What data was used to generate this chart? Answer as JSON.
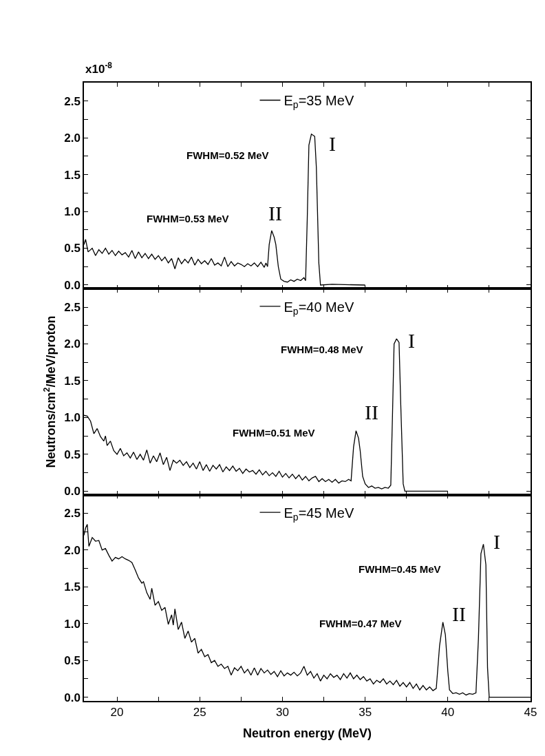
{
  "chart_data": [
    {
      "type": "line",
      "annotations": [
        "x10$^{-8}$",
        "FWHM=0.52 MeV",
        "I",
        "FWHM=0.53 MeV",
        "II"
      ],
      "series": [
        {
          "name": "E$_{p}$=35 MeV",
          "color": "#000000",
          "x": [
            18.0,
            18.1,
            18.25,
            18.5,
            18.7,
            18.9,
            19.1,
            19.3,
            19.5,
            19.7,
            19.9,
            20.1,
            20.3,
            20.5,
            20.7,
            20.9,
            21.1,
            21.3,
            21.5,
            21.7,
            21.9,
            22.1,
            22.3,
            22.5,
            22.7,
            22.9,
            23.1,
            23.3,
            23.5,
            23.7,
            23.9,
            24.1,
            24.3,
            24.5,
            24.7,
            24.9,
            25.1,
            25.3,
            25.5,
            25.7,
            25.9,
            26.1,
            26.3,
            26.5,
            26.7,
            26.9,
            27.1,
            27.3,
            27.5,
            27.7,
            27.9,
            28.1,
            28.3,
            28.5,
            28.7,
            28.9,
            29.0,
            29.1,
            29.2,
            29.35,
            29.5,
            29.6,
            29.75,
            29.9,
            30.1,
            30.3,
            30.5,
            30.7,
            30.9,
            31.1,
            31.3,
            31.4,
            31.5,
            31.6,
            31.75,
            31.95,
            32.05,
            32.2,
            32.3,
            33.0,
            35.0
          ],
          "values": [
            0.55,
            0.62,
            0.45,
            0.5,
            0.4,
            0.48,
            0.43,
            0.5,
            0.42,
            0.47,
            0.4,
            0.46,
            0.41,
            0.44,
            0.38,
            0.47,
            0.36,
            0.45,
            0.37,
            0.43,
            0.36,
            0.42,
            0.35,
            0.4,
            0.33,
            0.38,
            0.3,
            0.36,
            0.22,
            0.37,
            0.29,
            0.35,
            0.3,
            0.38,
            0.27,
            0.35,
            0.29,
            0.33,
            0.28,
            0.36,
            0.27,
            0.3,
            0.26,
            0.38,
            0.25,
            0.32,
            0.26,
            0.3,
            0.28,
            0.25,
            0.29,
            0.26,
            0.3,
            0.25,
            0.31,
            0.24,
            0.3,
            0.25,
            0.55,
            0.74,
            0.65,
            0.55,
            0.25,
            0.08,
            0.05,
            0.04,
            0.07,
            0.05,
            0.08,
            0.06,
            0.1,
            0.06,
            0.9,
            1.9,
            2.05,
            2.02,
            1.6,
            0.3,
            0.0,
            0.01,
            0.0
          ]
        }
      ],
      "xlim": [
        18,
        45
      ],
      "xticks": [
        20,
        {
          "value": 22.5,
          "label": null
        },
        25,
        {
          "value": 27.5,
          "label": null
        },
        30,
        {
          "value": 32.5,
          "label": null
        },
        35,
        {
          "value": 37.5,
          "label": null
        },
        40,
        {
          "value": 42.5,
          "label": null
        },
        45
      ],
      "ylim": [
        -0.05,
        2.75
      ],
      "yticks": [
        {
          "value": 0,
          "label": "0.0"
        },
        {
          "value": 0.25,
          "label": null
        },
        0.5,
        {
          "value": 0.75,
          "label": null
        },
        {
          "value": 1,
          "label": "1.0"
        },
        {
          "value": 1.25,
          "label": null
        },
        1.5,
        {
          "value": 1.75,
          "label": null
        },
        {
          "value": 2,
          "label": "2.0"
        },
        {
          "value": 2.25,
          "label": null
        },
        2.5
      ],
      "tick_labels": "y",
      "legend": "top",
      "marker": "none",
      "line_style": "solid"
    },
    {
      "type": "line",
      "ylabel": "Neutrons/cm$^{2}$/MeV/proton",
      "annotations": [
        "FWHM=0.48 MeV",
        "I",
        "FWHM=0.51 MeV",
        "II"
      ],
      "series": [
        {
          "name": "E$_{p}$=40 MeV",
          "color": "#000000",
          "x": [
            18.0,
            18.2,
            18.4,
            18.6,
            18.8,
            19.0,
            19.2,
            19.3,
            19.4,
            19.6,
            19.8,
            20.0,
            20.2,
            20.4,
            20.6,
            20.8,
            21.0,
            21.2,
            21.4,
            21.6,
            21.8,
            22.0,
            22.2,
            22.4,
            22.6,
            22.8,
            23.0,
            23.2,
            23.4,
            23.6,
            23.8,
            24.0,
            24.2,
            24.4,
            24.6,
            24.8,
            25.0,
            25.2,
            25.4,
            25.6,
            25.8,
            26.0,
            26.2,
            26.4,
            26.6,
            26.8,
            27.0,
            27.2,
            27.4,
            27.6,
            27.8,
            28.0,
            28.2,
            28.4,
            28.6,
            28.8,
            29.0,
            29.2,
            29.4,
            29.6,
            29.8,
            30.0,
            30.2,
            30.4,
            30.6,
            30.8,
            31.0,
            31.2,
            31.4,
            31.6,
            31.8,
            32.0,
            32.2,
            32.4,
            32.6,
            32.8,
            33.0,
            33.2,
            33.4,
            33.6,
            33.8,
            34.0,
            34.15,
            34.3,
            34.45,
            34.6,
            34.7,
            34.85,
            35.0,
            35.2,
            35.4,
            35.6,
            35.8,
            36.0,
            36.2,
            36.4,
            36.55,
            36.65,
            36.75,
            36.9,
            37.05,
            37.15,
            37.3,
            37.4,
            40.0
          ],
          "values": [
            1.03,
            1.02,
            0.95,
            0.78,
            0.85,
            0.74,
            0.68,
            0.75,
            0.62,
            0.68,
            0.55,
            0.5,
            0.58,
            0.48,
            0.52,
            0.45,
            0.53,
            0.43,
            0.5,
            0.42,
            0.56,
            0.38,
            0.48,
            0.4,
            0.52,
            0.36,
            0.46,
            0.28,
            0.42,
            0.38,
            0.42,
            0.35,
            0.4,
            0.32,
            0.38,
            0.3,
            0.4,
            0.28,
            0.36,
            0.27,
            0.35,
            0.3,
            0.36,
            0.26,
            0.33,
            0.28,
            0.34,
            0.27,
            0.31,
            0.24,
            0.3,
            0.26,
            0.28,
            0.23,
            0.29,
            0.22,
            0.27,
            0.21,
            0.25,
            0.2,
            0.27,
            0.19,
            0.24,
            0.18,
            0.23,
            0.17,
            0.22,
            0.15,
            0.2,
            0.14,
            0.18,
            0.2,
            0.13,
            0.17,
            0.13,
            0.16,
            0.12,
            0.16,
            0.11,
            0.14,
            0.13,
            0.16,
            0.14,
            0.6,
            0.82,
            0.72,
            0.55,
            0.2,
            0.1,
            0.05,
            0.07,
            0.04,
            0.05,
            0.03,
            0.05,
            0.04,
            0.08,
            1.0,
            2.0,
            2.07,
            2.02,
            1.2,
            0.1,
            0.0,
            0.0
          ]
        }
      ],
      "xlim": [
        18,
        45
      ],
      "xticks": [
        20,
        {
          "value": 22.5,
          "label": null
        },
        25,
        {
          "value": 27.5,
          "label": null
        },
        30,
        {
          "value": 32.5,
          "label": null
        },
        35,
        {
          "value": 37.5,
          "label": null
        },
        40,
        {
          "value": 42.5,
          "label": null
        },
        45
      ],
      "ylim": [
        -0.05,
        2.75
      ],
      "yticks": [
        {
          "value": 0,
          "label": "0.0"
        },
        {
          "value": 0.25,
          "label": null
        },
        0.5,
        {
          "value": 0.75,
          "label": null
        },
        {
          "value": 1,
          "label": "1.0"
        },
        {
          "value": 1.25,
          "label": null
        },
        1.5,
        {
          "value": 1.75,
          "label": null
        },
        {
          "value": 2,
          "label": "2.0"
        },
        {
          "value": 2.25,
          "label": null
        },
        2.5
      ],
      "tick_labels": "y",
      "legend": "top",
      "marker": "none",
      "line_style": "solid"
    },
    {
      "type": "line",
      "xlabel": "Neutron energy (MeV)",
      "annotations": [
        "FWHM=0.45 MeV",
        "I",
        "FWHM=0.47 MeV",
        "II"
      ],
      "series": [
        {
          "name": "E$_{p}$=45 MeV",
          "color": "#000000",
          "x": [
            18.0,
            18.1,
            18.2,
            18.3,
            18.5,
            18.7,
            18.9,
            19.1,
            19.3,
            19.5,
            19.7,
            19.9,
            20.1,
            20.3,
            20.5,
            20.7,
            20.9,
            21.1,
            21.3,
            21.5,
            21.6,
            21.8,
            22.0,
            22.1,
            22.3,
            22.5,
            22.7,
            22.9,
            23.1,
            23.3,
            23.4,
            23.5,
            23.7,
            23.9,
            24.1,
            24.3,
            24.5,
            24.7,
            24.9,
            25.1,
            25.3,
            25.5,
            25.7,
            25.9,
            26.1,
            26.3,
            26.5,
            26.7,
            26.9,
            27.1,
            27.3,
            27.5,
            27.7,
            27.9,
            28.1,
            28.3,
            28.5,
            28.7,
            28.9,
            29.1,
            29.3,
            29.5,
            29.7,
            29.9,
            30.1,
            30.3,
            30.5,
            30.7,
            30.9,
            31.1,
            31.3,
            31.5,
            31.7,
            31.9,
            32.1,
            32.3,
            32.5,
            32.7,
            32.9,
            33.1,
            33.3,
            33.5,
            33.7,
            33.9,
            34.1,
            34.3,
            34.5,
            34.7,
            34.9,
            35.1,
            35.3,
            35.5,
            35.7,
            35.9,
            36.1,
            36.3,
            36.5,
            36.7,
            36.9,
            37.1,
            37.3,
            37.5,
            37.7,
            37.9,
            38.1,
            38.3,
            38.5,
            38.7,
            38.9,
            39.1,
            39.3,
            39.5,
            39.7,
            39.85,
            40.0,
            40.1,
            40.3,
            40.5,
            40.7,
            40.9,
            41.1,
            41.3,
            41.5,
            41.7,
            41.85,
            42.0,
            42.15,
            42.3,
            42.4,
            42.5,
            45.0
          ],
          "values": [
            2.2,
            2.3,
            2.35,
            2.05,
            2.17,
            2.12,
            2.13,
            2.0,
            2.02,
            1.93,
            1.85,
            1.9,
            1.88,
            1.91,
            1.88,
            1.86,
            1.83,
            1.73,
            1.62,
            1.55,
            1.57,
            1.42,
            1.33,
            1.48,
            1.25,
            1.3,
            1.18,
            1.22,
            0.99,
            1.12,
            0.98,
            1.2,
            0.92,
            1.02,
            0.8,
            0.9,
            0.75,
            0.8,
            0.6,
            0.65,
            0.55,
            0.58,
            0.47,
            0.5,
            0.42,
            0.45,
            0.39,
            0.42,
            0.3,
            0.4,
            0.36,
            0.42,
            0.33,
            0.38,
            0.3,
            0.4,
            0.3,
            0.39,
            0.33,
            0.37,
            0.31,
            0.35,
            0.28,
            0.36,
            0.29,
            0.33,
            0.3,
            0.34,
            0.29,
            0.33,
            0.42,
            0.3,
            0.35,
            0.26,
            0.32,
            0.22,
            0.3,
            0.25,
            0.32,
            0.27,
            0.3,
            0.24,
            0.32,
            0.26,
            0.33,
            0.25,
            0.3,
            0.24,
            0.28,
            0.22,
            0.25,
            0.18,
            0.23,
            0.2,
            0.25,
            0.18,
            0.22,
            0.17,
            0.23,
            0.15,
            0.2,
            0.14,
            0.2,
            0.12,
            0.18,
            0.1,
            0.16,
            0.1,
            0.14,
            0.09,
            0.12,
            0.7,
            1.02,
            0.85,
            0.35,
            0.1,
            0.05,
            0.06,
            0.04,
            0.06,
            0.03,
            0.05,
            0.04,
            0.06,
            0.8,
            1.95,
            2.08,
            1.8,
            0.4,
            0.0,
            0.0
          ]
        }
      ],
      "xlim": [
        18,
        45
      ],
      "xticks": [
        20,
        {
          "value": 22.5,
          "label": null
        },
        25,
        {
          "value": 27.5,
          "label": null
        },
        30,
        {
          "value": 32.5,
          "label": null
        },
        35,
        {
          "value": 37.5,
          "label": null
        },
        40,
        {
          "value": 42.5,
          "label": null
        },
        45
      ],
      "ylim": [
        -0.05,
        2.75
      ],
      "yticks": [
        {
          "value": 0,
          "label": "0.0"
        },
        {
          "value": 0.25,
          "label": null
        },
        0.5,
        {
          "value": 0.75,
          "label": null
        },
        {
          "value": 1,
          "label": "1.0"
        },
        {
          "value": 1.25,
          "label": null
        },
        1.5,
        {
          "value": 1.75,
          "label": null
        },
        {
          "value": 2,
          "label": "2.0"
        },
        {
          "value": 2.25,
          "label": null
        },
        2.5
      ],
      "legend": "top",
      "marker": "none",
      "line_style": "solid"
    }
  ]
}
